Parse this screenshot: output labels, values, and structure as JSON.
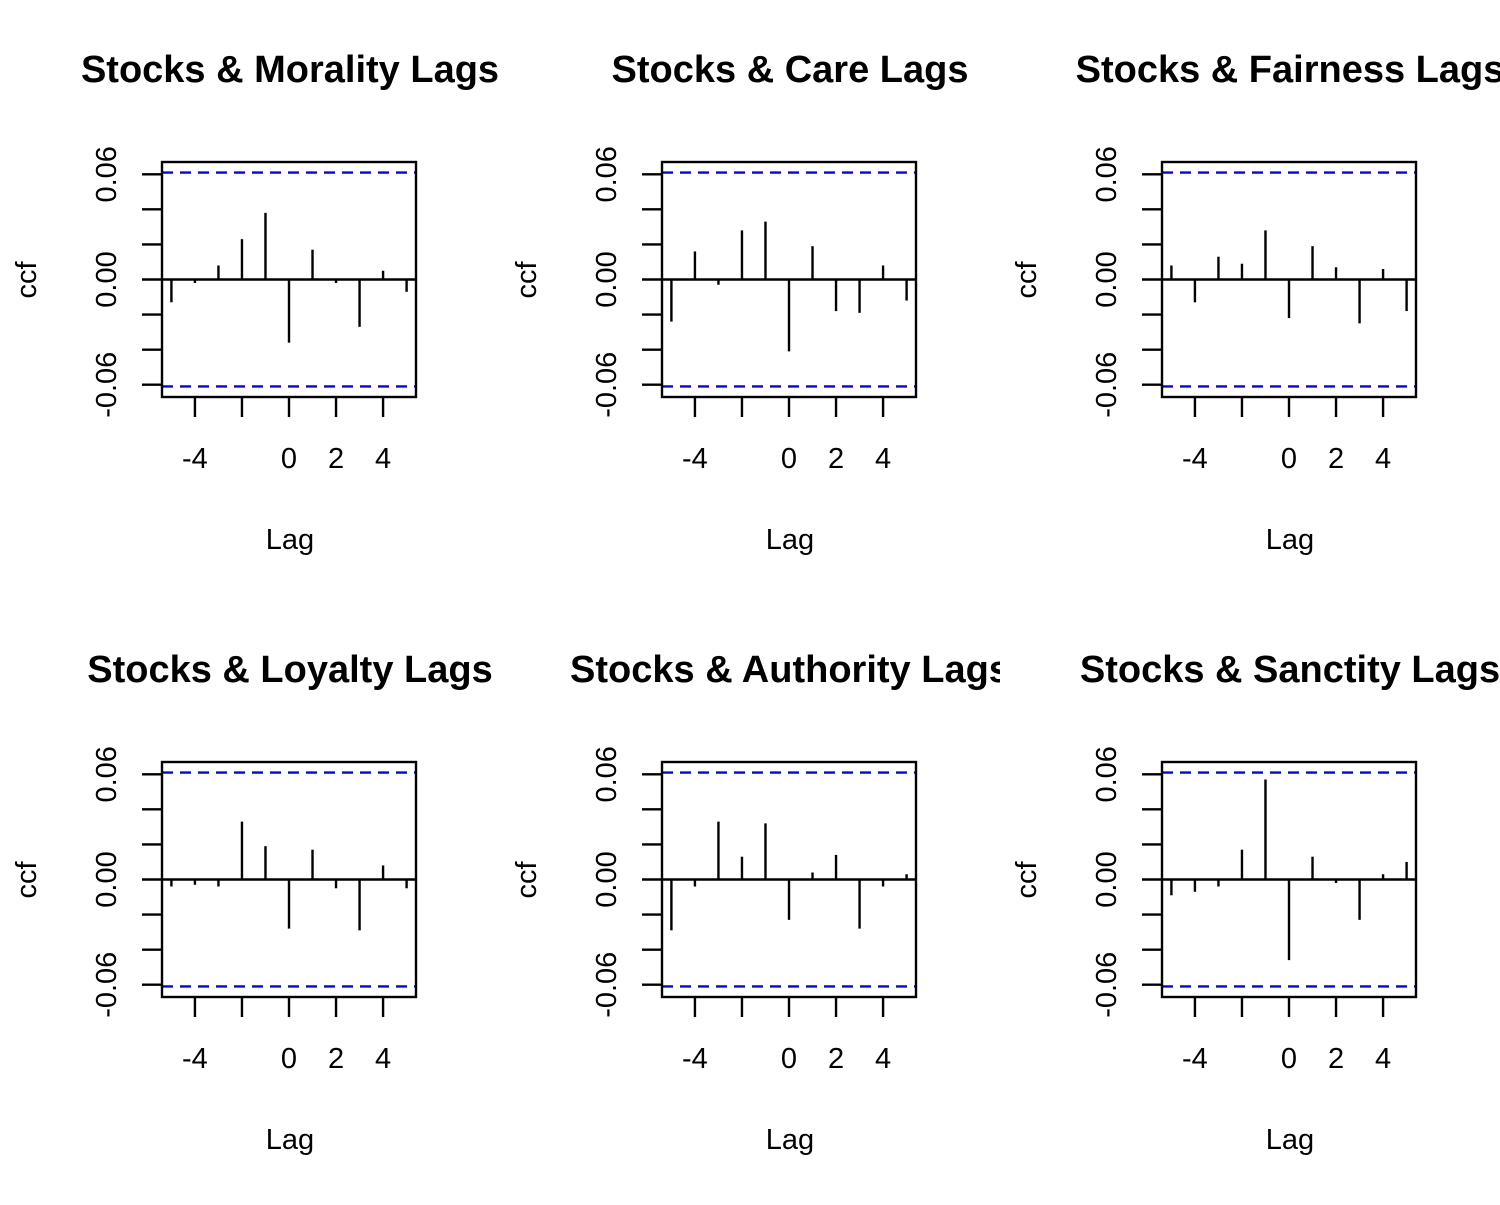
{
  "chart_data": [
    {
      "type": "bar",
      "title": "Stocks & Morality Lags",
      "xlabel": "Lag",
      "ylabel": "ccf",
      "xlim": [
        -5.4,
        5.4
      ],
      "ylim": [
        -0.067,
        0.067
      ],
      "x_ticks": [
        "-4",
        "0",
        "2",
        "4"
      ],
      "y_ticks": [
        "-0.06",
        "0.00",
        "0.06"
      ],
      "conf_limit": 0.061,
      "conf_color": "#0000ff",
      "x": [
        -5,
        -4,
        -3,
        -2,
        -1,
        0,
        1,
        2,
        3,
        4,
        5
      ],
      "values": [
        -0.013,
        -0.002,
        0.008,
        0.023,
        0.038,
        -0.036,
        0.017,
        -0.002,
        -0.027,
        0.005,
        -0.007
      ]
    },
    {
      "type": "bar",
      "title": "Stocks & Care Lags",
      "xlabel": "Lag",
      "ylabel": "ccf",
      "xlim": [
        -5.4,
        5.4
      ],
      "ylim": [
        -0.067,
        0.067
      ],
      "x_ticks": [
        "-4",
        "0",
        "2",
        "4"
      ],
      "y_ticks": [
        "-0.06",
        "0.00",
        "0.06"
      ],
      "conf_limit": 0.061,
      "conf_color": "#0000ff",
      "x": [
        -5,
        -4,
        -3,
        -2,
        -1,
        0,
        1,
        2,
        3,
        4,
        5
      ],
      "values": [
        -0.024,
        0.016,
        -0.003,
        0.028,
        0.033,
        -0.041,
        0.019,
        -0.018,
        -0.019,
        0.008,
        -0.012
      ]
    },
    {
      "type": "bar",
      "title": "Stocks & Fairness Lags",
      "xlabel": "Lag",
      "ylabel": "ccf",
      "xlim": [
        -5.4,
        5.4
      ],
      "ylim": [
        -0.067,
        0.067
      ],
      "x_ticks": [
        "-4",
        "0",
        "2",
        "4"
      ],
      "y_ticks": [
        "-0.06",
        "0.00",
        "0.06"
      ],
      "conf_limit": 0.061,
      "conf_color": "#0000ff",
      "x": [
        -5,
        -4,
        -3,
        -2,
        -1,
        0,
        1,
        2,
        3,
        4,
        5
      ],
      "values": [
        0.008,
        -0.013,
        0.013,
        0.009,
        0.028,
        -0.022,
        0.019,
        0.007,
        -0.025,
        0.006,
        -0.018
      ]
    },
    {
      "type": "bar",
      "title": "Stocks & Loyalty Lags",
      "xlabel": "Lag",
      "ylabel": "ccf",
      "xlim": [
        -5.4,
        5.4
      ],
      "ylim": [
        -0.067,
        0.067
      ],
      "x_ticks": [
        "-4",
        "0",
        "2",
        "4"
      ],
      "y_ticks": [
        "-0.06",
        "0.00",
        "0.06"
      ],
      "conf_limit": 0.061,
      "conf_color": "#0000ff",
      "x": [
        -5,
        -4,
        -3,
        -2,
        -1,
        0,
        1,
        2,
        3,
        4,
        5
      ],
      "values": [
        -0.004,
        -0.003,
        -0.004,
        0.033,
        0.019,
        -0.028,
        0.017,
        -0.005,
        -0.029,
        0.008,
        -0.005
      ]
    },
    {
      "type": "bar",
      "title": "Stocks & Authority Lags",
      "xlabel": "Lag",
      "ylabel": "ccf",
      "xlim": [
        -5.4,
        5.4
      ],
      "ylim": [
        -0.067,
        0.067
      ],
      "x_ticks": [
        "-4",
        "0",
        "2",
        "4"
      ],
      "y_ticks": [
        "-0.06",
        "0.00",
        "0.06"
      ],
      "conf_limit": 0.061,
      "conf_color": "#0000ff",
      "x": [
        -5,
        -4,
        -3,
        -2,
        -1,
        0,
        1,
        2,
        3,
        4,
        5
      ],
      "values": [
        -0.029,
        -0.004,
        0.033,
        0.013,
        0.032,
        -0.023,
        0.004,
        0.014,
        -0.028,
        -0.004,
        0.003
      ]
    },
    {
      "type": "bar",
      "title": "Stocks & Sanctity Lags",
      "xlabel": "Lag",
      "ylabel": "ccf",
      "xlim": [
        -5.4,
        5.4
      ],
      "ylim": [
        -0.067,
        0.067
      ],
      "x_ticks": [
        "-4",
        "0",
        "2",
        "4"
      ],
      "y_ticks": [
        "-0.06",
        "0.00",
        "0.06"
      ],
      "conf_limit": 0.061,
      "conf_color": "#0000ff",
      "x": [
        -5,
        -4,
        -3,
        -2,
        -1,
        0,
        1,
        2,
        3,
        4,
        5
      ],
      "values": [
        -0.009,
        -0.007,
        -0.004,
        0.017,
        0.057,
        -0.046,
        0.013,
        -0.002,
        -0.023,
        0.003,
        0.01
      ]
    }
  ]
}
